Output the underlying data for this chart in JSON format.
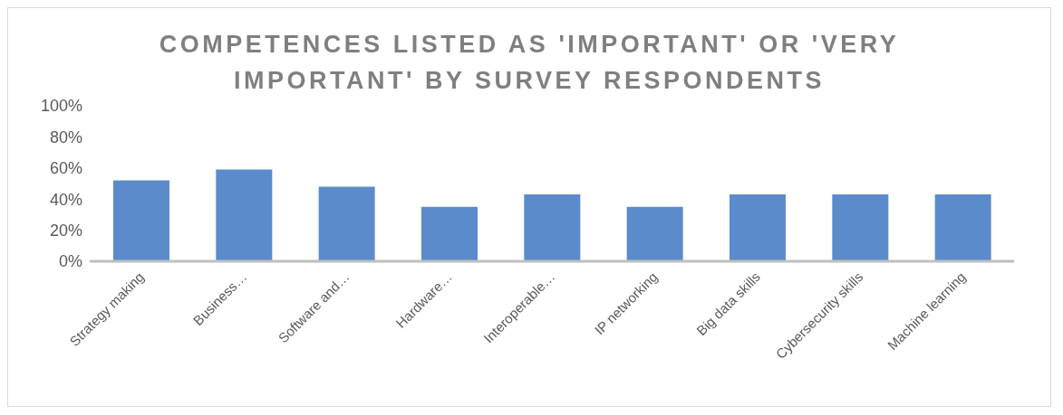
{
  "chart_data": {
    "type": "bar",
    "title": "COMPETENCES LISTED AS 'IMPORTANT' OR 'VERY IMPORTANT' BY SURVEY RESPONDENTS",
    "categories": [
      "Strategy making",
      "Business…",
      "Software and…",
      "Hardware…",
      "Interoperable…",
      "IP networking",
      "Big data skills",
      "Cybersecurity skills",
      "Machine learning"
    ],
    "values": [
      52,
      59,
      48,
      35,
      43,
      35,
      43,
      43,
      43
    ],
    "color": "#5b8bcb",
    "ylim": [
      0,
      100
    ],
    "yticks": [
      {
        "value": 0,
        "label": "0%"
      },
      {
        "value": 20,
        "label": "20%"
      },
      {
        "value": 40,
        "label": "40%"
      },
      {
        "value": 60,
        "label": "60%"
      },
      {
        "value": 80,
        "label": "80%"
      },
      {
        "value": 100,
        "label": "100%"
      }
    ],
    "grid": false,
    "legend": false
  }
}
